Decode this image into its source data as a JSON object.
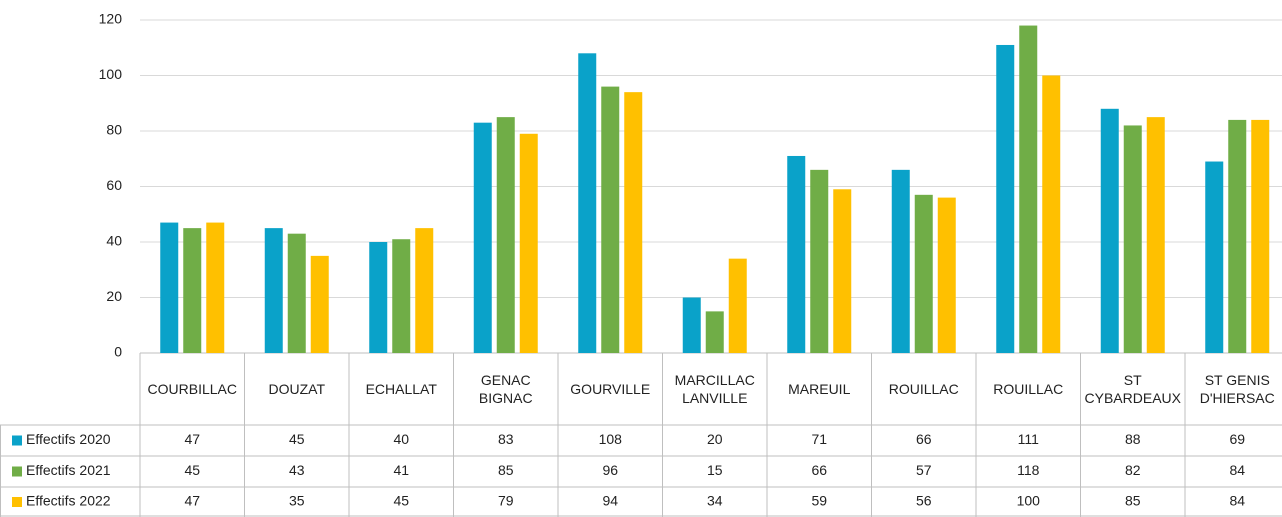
{
  "chart_data": {
    "type": "bar",
    "categories": [
      "COURBILLAC",
      "DOUZAT",
      "ECHALLAT",
      "GENAC BIGNAC",
      "GOURVILLE",
      "MARCILLAC LANVILLE",
      "MAREUIL",
      "ROUILLAC",
      "ROUILLAC",
      "ST CYBARDEAUX",
      "ST GENIS D'HIERSAC"
    ],
    "series": [
      {
        "name": "Effectifs 2020",
        "color": "#0aa2c9",
        "values": [
          47,
          45,
          40,
          83,
          108,
          20,
          71,
          66,
          111,
          88,
          69
        ]
      },
      {
        "name": "Effectifs 2021",
        "color": "#70ad47",
        "values": [
          45,
          43,
          41,
          85,
          96,
          15,
          66,
          57,
          118,
          82,
          84
        ]
      },
      {
        "name": "Effectifs 2022",
        "color": "#ffc000",
        "values": [
          47,
          35,
          45,
          79,
          94,
          34,
          59,
          56,
          100,
          85,
          84
        ]
      }
    ],
    "ylim": [
      0,
      120
    ],
    "yticks": [
      0,
      20,
      40,
      60,
      80,
      100,
      120
    ],
    "grid": true
  }
}
